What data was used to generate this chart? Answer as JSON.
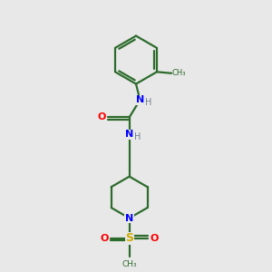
{
  "background_color": "#e8e8e8",
  "bond_color": "#2d6b2d",
  "atom_colors": {
    "N": "#0000ff",
    "O": "#ff0000",
    "S": "#ccaa00",
    "H": "#708090",
    "C": "#2d6b2d"
  },
  "line_width": 1.6,
  "figsize": [
    3.0,
    3.0
  ],
  "dpi": 100
}
